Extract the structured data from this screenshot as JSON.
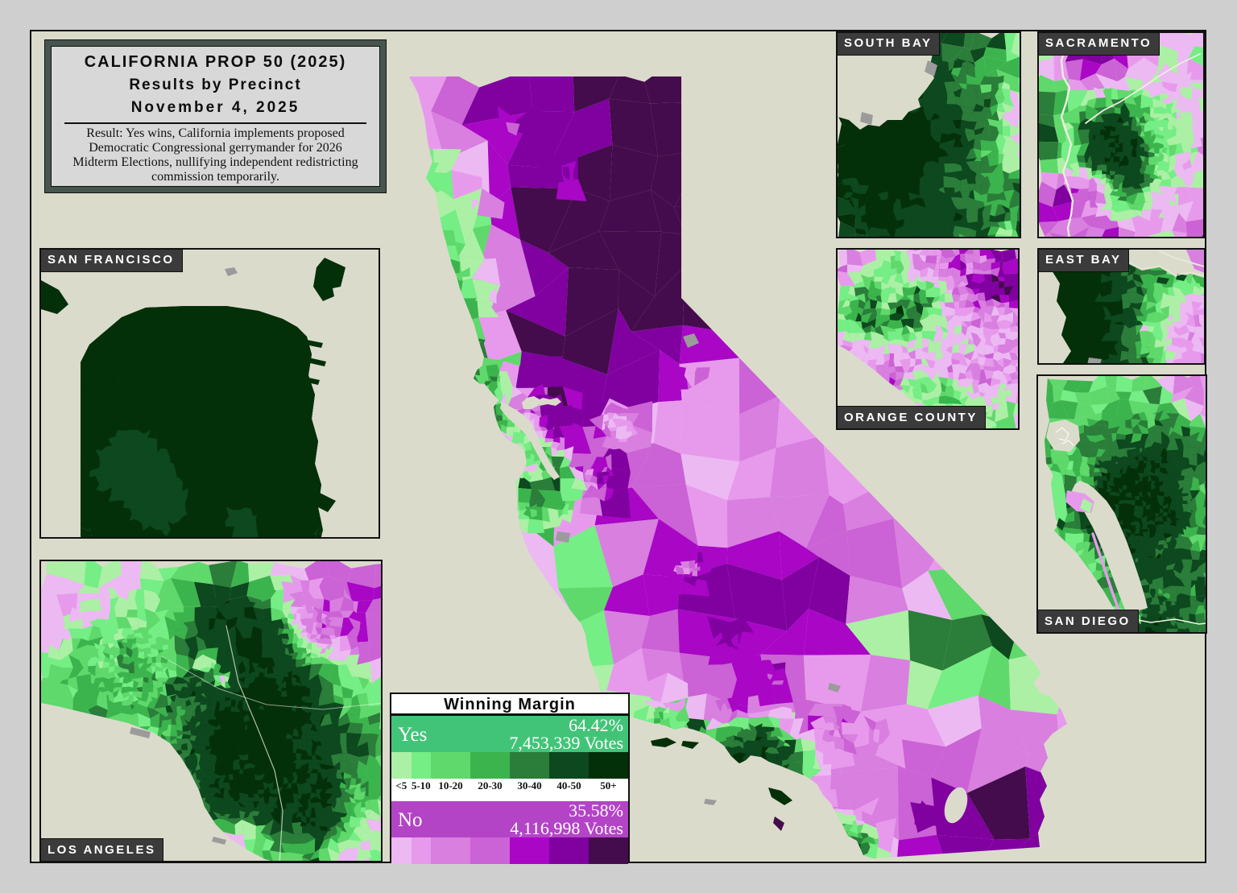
{
  "page": {
    "background": "#cfcfcf",
    "board_background": "#dbdbcc"
  },
  "title_box": {
    "title": "CALIFORNIA PROP 50 (2025)",
    "subtitle": "Results by Precinct",
    "date": "November 4, 2025",
    "note": "Result: Yes wins, California implements proposed Democratic Congressional gerrymander for 2026 Midterm Elections, nullifying independent redistricting commission temporarily."
  },
  "insets": [
    {
      "id": "san-francisco",
      "label": "SAN FRANCISCO",
      "label_position": "top-left"
    },
    {
      "id": "los-angeles",
      "label": "LOS ANGELES",
      "label_position": "bottom-left"
    },
    {
      "id": "south-bay",
      "label": "SOUTH BAY",
      "label_position": "top-left"
    },
    {
      "id": "sacramento",
      "label": "SACRAMENTO",
      "label_position": "top-left"
    },
    {
      "id": "orange-county",
      "label": "ORANGE COUNTY",
      "label_position": "bottom-left"
    },
    {
      "id": "east-bay",
      "label": "EAST BAY",
      "label_position": "top-left"
    },
    {
      "id": "san-diego",
      "label": "SAN DIEGO",
      "label_position": "bottom-left"
    }
  ],
  "legend": {
    "title": "Winning Margin",
    "bins": [
      "<5",
      "5-10",
      "10-20",
      "20-30",
      "30-40",
      "40-50",
      "50+"
    ],
    "bin_relative_widths": [
      5,
      5,
      10,
      10,
      10,
      10,
      10
    ],
    "yes": {
      "label": "Yes",
      "percent": "64.42%",
      "votes": "7,453,339 Votes",
      "bar_color": "#42c478",
      "scale": [
        "#abf0a4",
        "#74ee85",
        "#5fd96b",
        "#3cb44d",
        "#2b7d3a",
        "#0d481e",
        "#043009"
      ]
    },
    "no": {
      "label": "No",
      "percent": "35.58%",
      "votes": "4,116,998 Votes",
      "bar_color": "#b344c6",
      "scale": [
        "#ecb9f3",
        "#e79aec",
        "#d87fe0",
        "#cb62d5",
        "#a906c6",
        "#8000a0",
        "#440c4c"
      ]
    }
  },
  "map": {
    "region": "California",
    "water_color": "#dbdbcc",
    "no_data_color": "#9b9b9b"
  }
}
